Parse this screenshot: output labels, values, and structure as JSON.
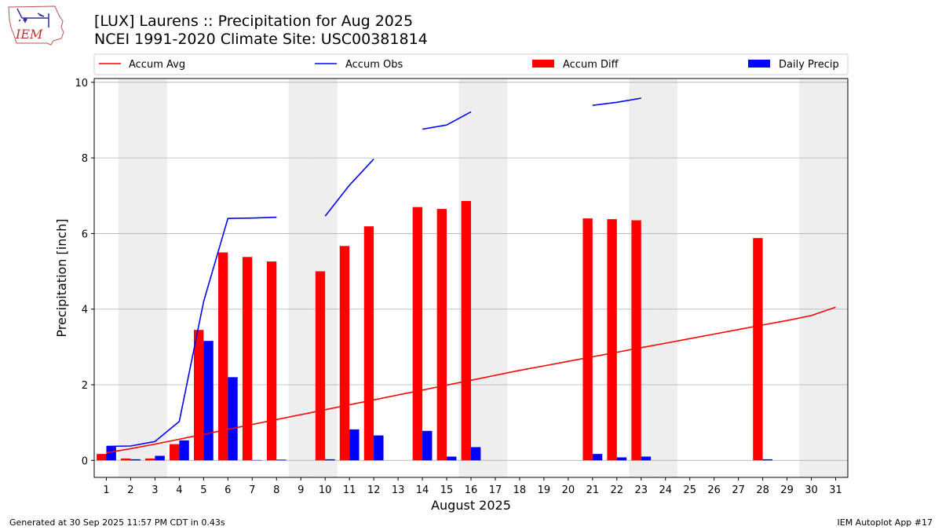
{
  "header": {
    "title_line1": "[LUX] Laurens :: Precipitation for Aug 2025",
    "title_line2": "NCEI 1991-2020 Climate Site: USC00381814",
    "logo_text": "IEM"
  },
  "footer": {
    "generated": "Generated at 30 Sep 2025 11:57 PM CDT in 0.43s",
    "app": "IEM Autoplot App #17"
  },
  "colors": {
    "avg": "#ff0000",
    "obs": "#0000ff",
    "diff": "#ff0000",
    "daily": "#0000ff",
    "weekend": "#eeeeee",
    "grid": "#b0b0b0"
  },
  "chart_data": {
    "type": "bar",
    "title": "[LUX] Laurens :: Precipitation for Aug 2025",
    "subtitle": "NCEI 1991-2020 Climate Site: USC00381814",
    "xlabel": "August 2025",
    "ylabel": "Precipitation [inch]",
    "xlim": [
      0.5,
      31.5
    ],
    "ylim": [
      -0.45,
      10.1
    ],
    "yticks": [
      0,
      2,
      4,
      6,
      8,
      10
    ],
    "days": [
      1,
      2,
      3,
      4,
      5,
      6,
      7,
      8,
      9,
      10,
      11,
      12,
      13,
      14,
      15,
      16,
      17,
      18,
      19,
      20,
      21,
      22,
      23,
      24,
      25,
      26,
      27,
      28,
      29,
      30,
      31
    ],
    "shaded_days": [
      2,
      3,
      9,
      10,
      16,
      17,
      23,
      24,
      30,
      31
    ],
    "legend": [
      "Accum Avg",
      "Accum Obs",
      "Accum Diff",
      "Daily Precip"
    ],
    "series": [
      {
        "name": "Accum Avg",
        "kind": "line",
        "values": [
          0.2,
          0.31,
          0.43,
          0.56,
          0.69,
          0.82,
          0.95,
          1.08,
          1.21,
          1.34,
          1.47,
          1.6,
          1.73,
          1.86,
          1.99,
          2.12,
          2.25,
          2.38,
          2.5,
          2.62,
          2.74,
          2.86,
          2.98,
          3.1,
          3.22,
          3.34,
          3.46,
          3.58,
          3.7,
          3.83,
          4.05
        ]
      },
      {
        "name": "Accum Obs",
        "kind": "line",
        "values": [
          0.37,
          0.38,
          0.5,
          1.03,
          4.2,
          6.4,
          6.41,
          6.43,
          null,
          6.46,
          7.28,
          7.97,
          null,
          8.76,
          8.87,
          9.22,
          null,
          null,
          null,
          null,
          9.39,
          9.47,
          9.58,
          null,
          null,
          null,
          null,
          null,
          null,
          null,
          null
        ]
      },
      {
        "name": "Accum Diff",
        "kind": "bar",
        "values": [
          0.17,
          0.05,
          0.05,
          0.43,
          3.45,
          5.5,
          5.38,
          5.26,
          null,
          5.0,
          5.67,
          6.19,
          null,
          6.7,
          6.65,
          6.86,
          null,
          null,
          null,
          null,
          6.4,
          6.38,
          6.35,
          null,
          null,
          null,
          null,
          5.88,
          null,
          null,
          null
        ]
      },
      {
        "name": "Daily Precip",
        "kind": "bar",
        "values": [
          0.37,
          0.03,
          0.12,
          0.53,
          3.16,
          2.2,
          0.01,
          0.02,
          null,
          0.03,
          0.82,
          0.66,
          null,
          0.78,
          0.1,
          0.35,
          null,
          null,
          null,
          null,
          0.17,
          0.08,
          0.1,
          null,
          null,
          null,
          null,
          0.03,
          null,
          null,
          null
        ]
      }
    ]
  }
}
